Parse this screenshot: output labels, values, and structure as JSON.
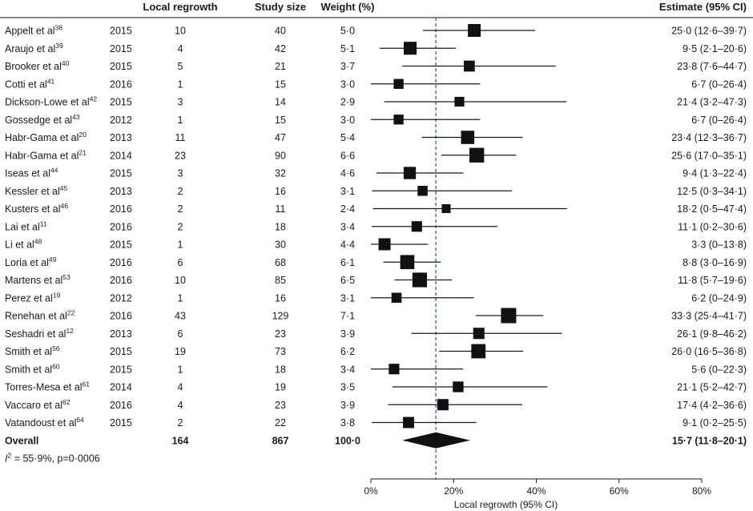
{
  "chart_data": {
    "type": "forest",
    "headers": {
      "local_regrowth": "Local regrowth",
      "study_size": "Study size",
      "weight": "Weight (%)",
      "estimate": "Estimate (95% CI)"
    },
    "studies": [
      {
        "author": "Appelt et al",
        "ref": "38",
        "year": "2015",
        "regrowth": "10",
        "size": "40",
        "weight": "5·0",
        "estimate": 25.0,
        "lower": 12.6,
        "upper": 39.7,
        "estimate_text": "25·0 (12·6–39·7)"
      },
      {
        "author": "Araujo et al",
        "ref": "39",
        "year": "2015",
        "regrowth": "4",
        "size": "42",
        "weight": "5·1",
        "estimate": 9.5,
        "lower": 2.1,
        "upper": 20.6,
        "estimate_text": "9·5 (2·1–20·6)"
      },
      {
        "author": "Brooker et al",
        "ref": "40",
        "year": "2015",
        "regrowth": "5",
        "size": "21",
        "weight": "3·7",
        "estimate": 23.8,
        "lower": 7.6,
        "upper": 44.7,
        "estimate_text": "23·8 (7·6–44·7)"
      },
      {
        "author": "Cotti et al",
        "ref": "41",
        "year": "2016",
        "regrowth": "1",
        "size": "15",
        "weight": "3·0",
        "estimate": 6.7,
        "lower": 0,
        "upper": 26.4,
        "estimate_text": "6·7 (0–26·4)"
      },
      {
        "author": "Dickson-Lowe et al",
        "ref": "42",
        "year": "2015",
        "regrowth": "3",
        "size": "14",
        "weight": "2·9",
        "estimate": 21.4,
        "lower": 3.2,
        "upper": 47.3,
        "estimate_text": "21·4 (3·2–47·3)"
      },
      {
        "author": "Gossedge et al",
        "ref": "43",
        "year": "2012",
        "regrowth": "1",
        "size": "15",
        "weight": "3·0",
        "estimate": 6.7,
        "lower": 0,
        "upper": 26.4,
        "estimate_text": "6·7 (0–26·4)"
      },
      {
        "author": "Habr-Gama et al",
        "ref": "20",
        "year": "2013",
        "regrowth": "11",
        "size": "47",
        "weight": "5·4",
        "estimate": 23.4,
        "lower": 12.3,
        "upper": 36.7,
        "estimate_text": "23·4 (12·3–36·7)"
      },
      {
        "author": "Habr-Gama et al",
        "ref": "21",
        "year": "2014",
        "regrowth": "23",
        "size": "90",
        "weight": "6·6",
        "estimate": 25.6,
        "lower": 17.0,
        "upper": 35.1,
        "estimate_text": "25·6 (17·0–35·1)"
      },
      {
        "author": "Iseas et al",
        "ref": "44",
        "year": "2015",
        "regrowth": "3",
        "size": "32",
        "weight": "4·6",
        "estimate": 9.4,
        "lower": 1.3,
        "upper": 22.4,
        "estimate_text": "9·4 (1·3–22·4)"
      },
      {
        "author": "Kessler et al",
        "ref": "45",
        "year": "2013",
        "regrowth": "2",
        "size": "16",
        "weight": "3·1",
        "estimate": 12.5,
        "lower": 0.3,
        "upper": 34.1,
        "estimate_text": "12·5 (0·3–34·1)"
      },
      {
        "author": "Kusters et al",
        "ref": "46",
        "year": "2016",
        "regrowth": "2",
        "size": "11",
        "weight": "2·4",
        "estimate": 18.2,
        "lower": 0.5,
        "upper": 47.4,
        "estimate_text": "18·2 (0·5–47·4)"
      },
      {
        "author": "Lai et al",
        "ref": "11",
        "year": "2016",
        "regrowth": "2",
        "size": "18",
        "weight": "3·4",
        "estimate": 11.1,
        "lower": 0.2,
        "upper": 30.6,
        "estimate_text": "11·1 (0·2–30·6)"
      },
      {
        "author": "Li et al",
        "ref": "48",
        "year": "2015",
        "regrowth": "1",
        "size": "30",
        "weight": "4·4",
        "estimate": 3.3,
        "lower": 0,
        "upper": 13.8,
        "estimate_text": "3·3 (0–13·8)"
      },
      {
        "author": "Loria et al",
        "ref": "49",
        "year": "2016",
        "regrowth": "6",
        "size": "68",
        "weight": "6·1",
        "estimate": 8.8,
        "lower": 3.0,
        "upper": 16.9,
        "estimate_text": "8·8 (3·0–16·9)"
      },
      {
        "author": "Martens et al",
        "ref": "53",
        "year": "2016",
        "regrowth": "10",
        "size": "85",
        "weight": "6·5",
        "estimate": 11.8,
        "lower": 5.7,
        "upper": 19.6,
        "estimate_text": "11·8 (5·7–19·6)"
      },
      {
        "author": "Perez et al",
        "ref": "19",
        "year": "2012",
        "regrowth": "1",
        "size": "16",
        "weight": "3·1",
        "estimate": 6.2,
        "lower": 0,
        "upper": 24.9,
        "estimate_text": "6·2 (0–24·9)"
      },
      {
        "author": "Renehan et al",
        "ref": "22",
        "year": "2016",
        "regrowth": "43",
        "size": "129",
        "weight": "7·1",
        "estimate": 33.3,
        "lower": 25.4,
        "upper": 41.7,
        "estimate_text": "33·3 (25·4–41·7)"
      },
      {
        "author": "Seshadri et al",
        "ref": "12",
        "year": "2013",
        "regrowth": "6",
        "size": "23",
        "weight": "3·9",
        "estimate": 26.1,
        "lower": 9.8,
        "upper": 46.2,
        "estimate_text": "26·1 (9·8–46·2)"
      },
      {
        "author": "Smith et al",
        "ref": "56",
        "year": "2015",
        "regrowth": "19",
        "size": "73",
        "weight": "6·2",
        "estimate": 26.0,
        "lower": 16.5,
        "upper": 36.8,
        "estimate_text": "26·0 (16·5–36·8)"
      },
      {
        "author": "Smith et al",
        "ref": "60",
        "year": "2015",
        "regrowth": "1",
        "size": "18",
        "weight": "3·4",
        "estimate": 5.6,
        "lower": 0,
        "upper": 22.3,
        "estimate_text": "5·6 (0–22·3)"
      },
      {
        "author": "Torres-Mesa et al",
        "ref": "61",
        "year": "2014",
        "regrowth": "4",
        "size": "19",
        "weight": "3·5",
        "estimate": 21.1,
        "lower": 5.2,
        "upper": 42.7,
        "estimate_text": "21·1 (5·2–42·7)"
      },
      {
        "author": "Vaccaro et al",
        "ref": "62",
        "year": "2016",
        "regrowth": "4",
        "size": "23",
        "weight": "3·9",
        "estimate": 17.4,
        "lower": 4.2,
        "upper": 36.6,
        "estimate_text": "17·4 (4·2–36·6)"
      },
      {
        "author": "Vatandoust et al",
        "ref": "64",
        "year": "2015",
        "regrowth": "2",
        "size": "22",
        "weight": "3·8",
        "estimate": 9.1,
        "lower": 0.2,
        "upper": 25.5,
        "estimate_text": "9·1 (0·2–25·5)"
      }
    ],
    "overall": {
      "label": "Overall",
      "regrowth": "164",
      "size": "867",
      "weight": "100·0",
      "estimate": 15.7,
      "lower": 11.8,
      "upper": 20.1,
      "estimate_text": "15·7 (11·8–20·1)"
    },
    "heterogeneity": {
      "i2_symbol": "I",
      "i2_sup": "2",
      "text": " = 55·9%, p=0·0006"
    },
    "x_axis": {
      "label": "Local regrowth (95% CI)",
      "range": [
        0,
        80
      ],
      "ticks": [
        0,
        20,
        40,
        60,
        80
      ],
      "tick_labels": [
        "0%",
        "20%",
        "40%",
        "60%",
        "80%"
      ]
    },
    "reference_line": 15.7
  }
}
